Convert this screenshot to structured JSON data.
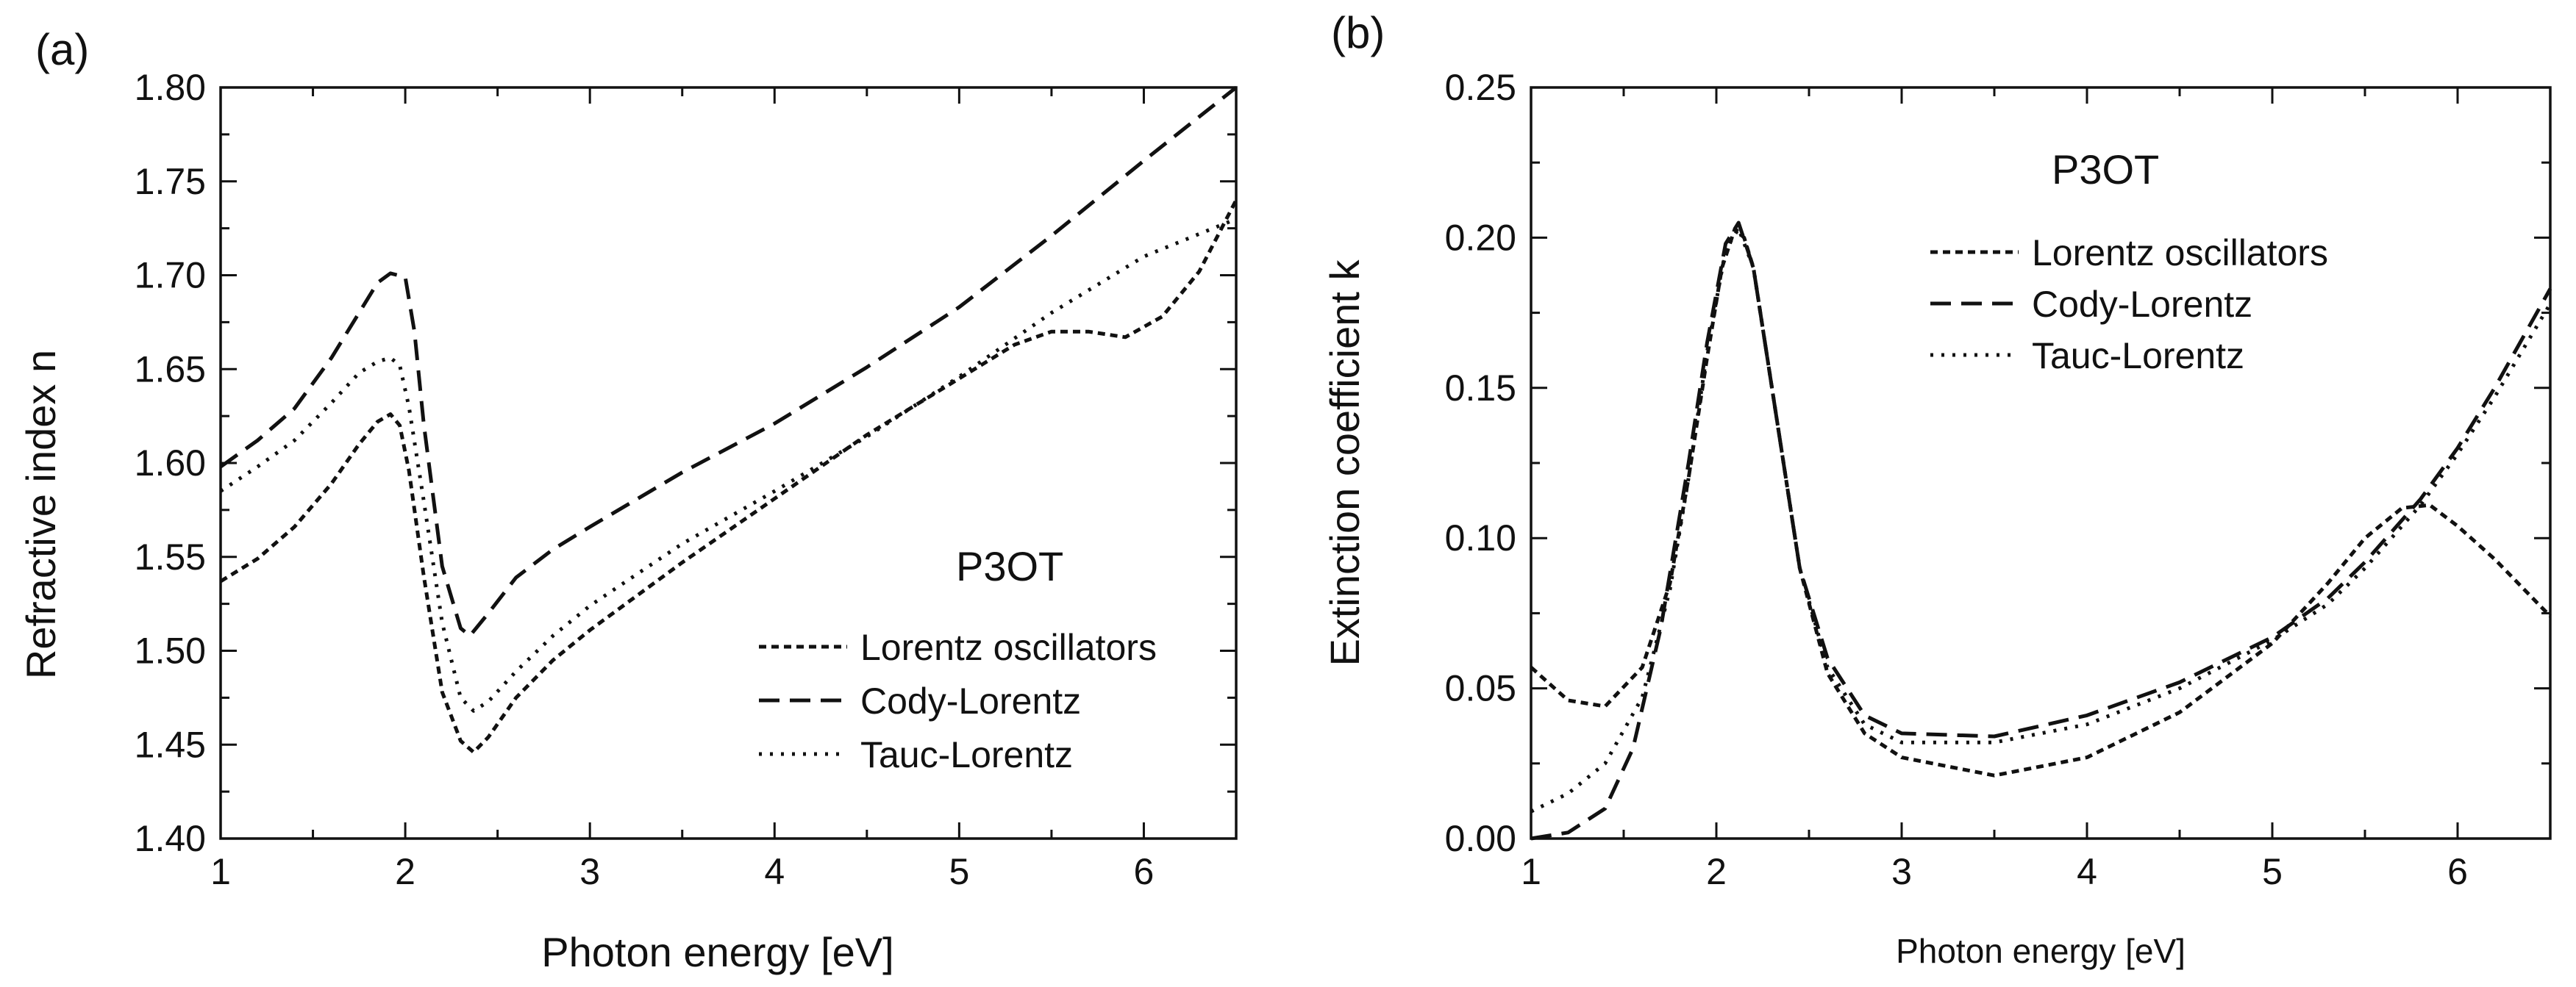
{
  "chart_data": [
    {
      "type": "line",
      "panel_label": "(a)",
      "title": "",
      "xlabel": "Photon energy [eV]",
      "ylabel": "Refractive index n",
      "xlim": [
        1,
        6.5
      ],
      "ylim": [
        1.4,
        1.8
      ],
      "xticks": [
        1,
        2,
        3,
        4,
        5,
        6
      ],
      "yticks": [
        1.4,
        1.45,
        1.5,
        1.55,
        1.6,
        1.65,
        1.7,
        1.75,
        1.8
      ],
      "ytick_labels": [
        "1.40",
        "1.45",
        "1.50",
        "1.55",
        "1.60",
        "1.65",
        "1.70",
        "1.75",
        "1.80"
      ],
      "grid": false,
      "annotation": "P3OT",
      "legend_position": "lower-right",
      "series": [
        {
          "name": "Lorentz oscillators",
          "style": "short-dash",
          "x": [
            1.0,
            1.2,
            1.4,
            1.6,
            1.75,
            1.85,
            1.92,
            1.97,
            2.02,
            2.1,
            2.2,
            2.3,
            2.37,
            2.45,
            2.6,
            2.8,
            3.0,
            3.5,
            4.0,
            4.5,
            5.0,
            5.3,
            5.5,
            5.7,
            5.9,
            6.1,
            6.3,
            6.5
          ],
          "y": [
            1.537,
            1.549,
            1.566,
            1.589,
            1.61,
            1.622,
            1.626,
            1.62,
            1.596,
            1.54,
            1.478,
            1.452,
            1.446,
            1.454,
            1.475,
            1.495,
            1.511,
            1.547,
            1.581,
            1.615,
            1.645,
            1.663,
            1.67,
            1.67,
            1.667,
            1.678,
            1.702,
            1.74
          ]
        },
        {
          "name": "Cody-Lorentz",
          "style": "long-dash",
          "x": [
            1.0,
            1.2,
            1.4,
            1.6,
            1.75,
            1.85,
            1.92,
            2.0,
            2.05,
            2.1,
            2.2,
            2.3,
            2.35,
            2.45,
            2.6,
            2.8,
            3.0,
            3.5,
            4.0,
            4.5,
            5.0,
            5.5,
            6.0,
            6.5
          ],
          "y": [
            1.598,
            1.612,
            1.629,
            1.656,
            1.68,
            1.696,
            1.701,
            1.699,
            1.67,
            1.621,
            1.545,
            1.512,
            1.508,
            1.52,
            1.539,
            1.554,
            1.566,
            1.595,
            1.621,
            1.651,
            1.683,
            1.721,
            1.761,
            1.8
          ]
        },
        {
          "name": "Tauc-Lorentz",
          "style": "dotted",
          "x": [
            1.0,
            1.2,
            1.4,
            1.6,
            1.75,
            1.85,
            1.92,
            1.97,
            2.02,
            2.1,
            2.2,
            2.3,
            2.37,
            2.45,
            2.6,
            2.8,
            3.0,
            3.5,
            4.0,
            4.5,
            5.0,
            5.5,
            6.0,
            6.5
          ],
          "y": [
            1.585,
            1.598,
            1.612,
            1.632,
            1.648,
            1.654,
            1.656,
            1.652,
            1.63,
            1.58,
            1.515,
            1.475,
            1.468,
            1.473,
            1.489,
            1.508,
            1.524,
            1.557,
            1.585,
            1.614,
            1.646,
            1.68,
            1.71,
            1.73
          ]
        }
      ]
    },
    {
      "type": "line",
      "panel_label": "(b)",
      "title": "",
      "xlabel": "Photon energy [eV]",
      "ylabel": "Extinction coefficient k",
      "xlim": [
        1,
        6.5
      ],
      "ylim": [
        0,
        0.25
      ],
      "xticks": [
        1,
        2,
        3,
        4,
        5,
        6
      ],
      "yticks": [
        0.0,
        0.05,
        0.1,
        0.15,
        0.2,
        0.25
      ],
      "ytick_labels": [
        "0.00",
        "0.05",
        "0.10",
        "0.15",
        "0.20",
        "0.25"
      ],
      "grid": false,
      "annotation": "P3OT",
      "legend_position": "top-right",
      "series": [
        {
          "name": "Lorentz oscillators",
          "style": "short-dash",
          "x": [
            1.0,
            1.2,
            1.4,
            1.6,
            1.75,
            1.85,
            1.95,
            2.03,
            2.1,
            2.15,
            2.2,
            2.3,
            2.45,
            2.6,
            2.8,
            3.0,
            3.5,
            4.0,
            4.5,
            5.0,
            5.3,
            5.5,
            5.7,
            5.85,
            6.0,
            6.2,
            6.5
          ],
          "y": [
            0.057,
            0.046,
            0.044,
            0.057,
            0.085,
            0.12,
            0.16,
            0.19,
            0.203,
            0.2,
            0.19,
            0.15,
            0.09,
            0.055,
            0.035,
            0.027,
            0.021,
            0.027,
            0.042,
            0.065,
            0.085,
            0.1,
            0.11,
            0.111,
            0.104,
            0.093,
            0.074
          ]
        },
        {
          "name": "Cody-Lorentz",
          "style": "long-dash",
          "x": [
            1.0,
            1.2,
            1.4,
            1.55,
            1.7,
            1.85,
            1.95,
            2.05,
            2.12,
            2.2,
            2.3,
            2.45,
            2.6,
            2.8,
            3.0,
            3.5,
            4.0,
            4.5,
            5.0,
            5.3,
            5.5,
            5.7,
            5.8,
            6.0,
            6.2,
            6.5
          ],
          "y": [
            0.0,
            0.002,
            0.01,
            0.03,
            0.07,
            0.125,
            0.165,
            0.198,
            0.205,
            0.19,
            0.15,
            0.09,
            0.06,
            0.041,
            0.035,
            0.034,
            0.041,
            0.052,
            0.067,
            0.08,
            0.092,
            0.106,
            0.113,
            0.13,
            0.15,
            0.183
          ]
        },
        {
          "name": "Tauc-Lorentz",
          "style": "dotted",
          "x": [
            1.0,
            1.2,
            1.4,
            1.6,
            1.75,
            1.85,
            1.95,
            2.05,
            2.12,
            2.2,
            2.3,
            2.45,
            2.6,
            2.8,
            3.0,
            3.5,
            4.0,
            4.5,
            5.0,
            5.3,
            5.5,
            5.7,
            5.8,
            6.0,
            6.2,
            6.5
          ],
          "y": [
            0.009,
            0.015,
            0.025,
            0.047,
            0.083,
            0.12,
            0.162,
            0.196,
            0.203,
            0.19,
            0.15,
            0.09,
            0.057,
            0.038,
            0.032,
            0.032,
            0.038,
            0.05,
            0.066,
            0.078,
            0.09,
            0.104,
            0.111,
            0.128,
            0.147,
            0.178
          ]
        }
      ]
    }
  ]
}
